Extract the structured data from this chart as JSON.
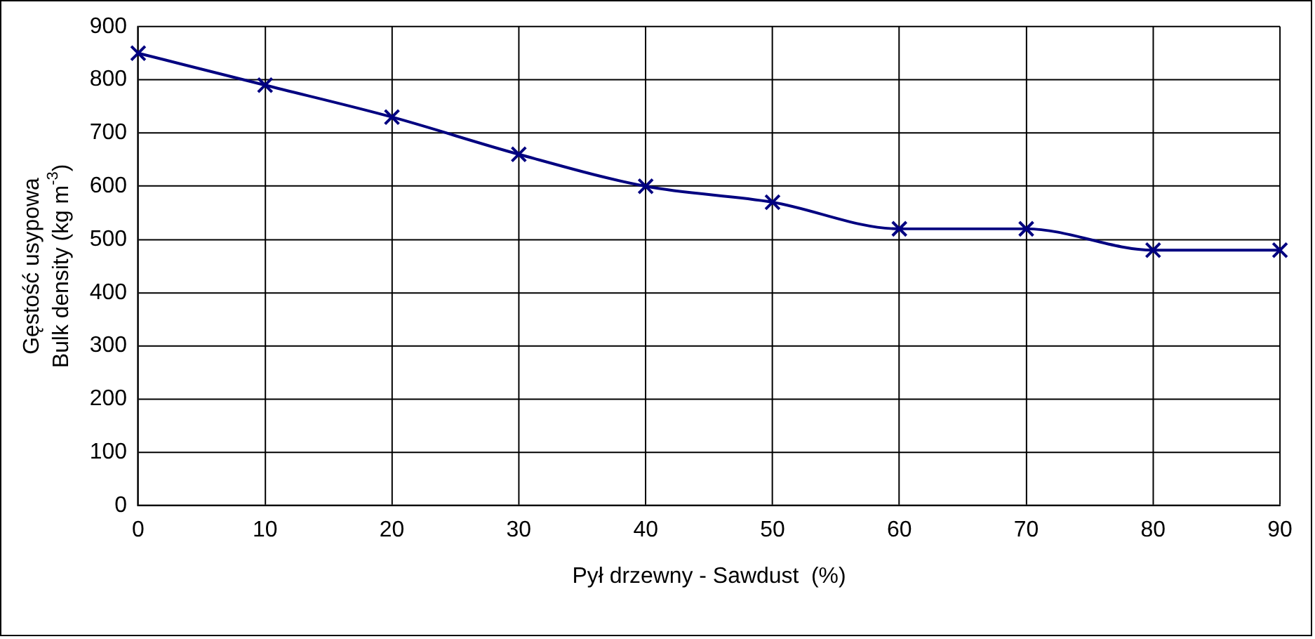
{
  "chart_data": {
    "type": "line",
    "xlabel": "Pył drzewny - Sawdust  (%)",
    "ylabel": "Gęstość usypowa\nBulk density (kg m$^{-3}$)",
    "x": [
      0,
      10,
      20,
      30,
      40,
      50,
      60,
      70,
      80,
      90
    ],
    "series": [
      {
        "color": "#000080",
        "values": [
          850,
          790,
          730,
          660,
          600,
          570,
          520,
          520,
          480,
          480
        ]
      }
    ],
    "xlim": [
      0,
      90
    ],
    "xticks": [
      0,
      10,
      20,
      30,
      40,
      50,
      60,
      70,
      80,
      90
    ],
    "ylim": [
      0,
      900
    ],
    "yticks": [
      0,
      100,
      200,
      300,
      400,
      500,
      600,
      700,
      800,
      900
    ],
    "grid": true,
    "legend": false,
    "marker": "cross",
    "line_style": "solid"
  }
}
